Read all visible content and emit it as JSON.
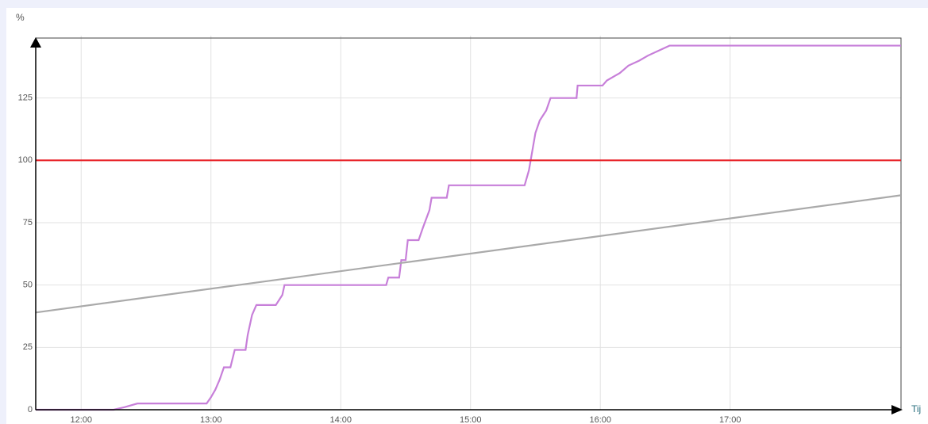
{
  "chart_data": {
    "type": "line",
    "y_label": "%",
    "x_label": "Tij",
    "xlim": [
      699,
      1099
    ],
    "ylim": [
      0,
      150
    ],
    "xticks": [
      {
        "value": 720,
        "label": "12:00"
      },
      {
        "value": 780,
        "label": "13:00"
      },
      {
        "value": 840,
        "label": "14:00"
      },
      {
        "value": 900,
        "label": "15:00"
      },
      {
        "value": 960,
        "label": "16:00"
      },
      {
        "value": 1020,
        "label": "17:00"
      }
    ],
    "yticks": [
      0,
      25,
      50,
      75,
      100,
      125
    ],
    "grid": true,
    "series": [
      {
        "color": "#c77fd9",
        "x": [
          699,
          735,
          740,
          746,
          778,
          780,
          782,
          784,
          786,
          789,
          791,
          796,
          797,
          799,
          801,
          810,
          813,
          814,
          861,
          862,
          867,
          868,
          870,
          871,
          876,
          878,
          881,
          882,
          889,
          890,
          905,
          925,
          927,
          928,
          930,
          932,
          935,
          937,
          949,
          949.5,
          961,
          963,
          967,
          969,
          973,
          978,
          982,
          987,
          992,
          1099
        ],
        "values": [
          0,
          0,
          1,
          2.5,
          2.5,
          5,
          8,
          12,
          17,
          17,
          24,
          24,
          30,
          38,
          42,
          42,
          46,
          50,
          50,
          53,
          53,
          60,
          60,
          68,
          68,
          73,
          80,
          85,
          85,
          90,
          90,
          90,
          96,
          101,
          111,
          116,
          120,
          125,
          125,
          130,
          130,
          132,
          134,
          135,
          138,
          140,
          142,
          144,
          146,
          146
        ]
      },
      {
        "color": "#e8242a",
        "x": [
          699,
          1099
        ],
        "values": [
          100,
          100
        ]
      },
      {
        "color": "#aaaaaa",
        "x": [
          699,
          1099
        ],
        "values": [
          39,
          86
        ]
      }
    ]
  }
}
